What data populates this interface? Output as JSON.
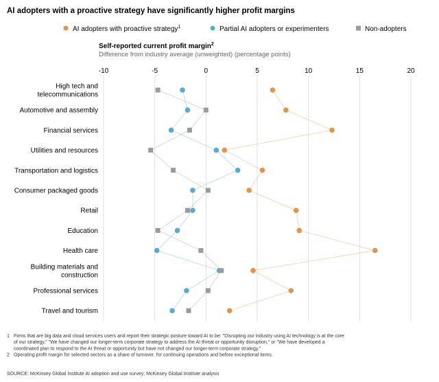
{
  "colors": {
    "proactive": "#E2944B",
    "partial": "#5AA9CE",
    "non": "#9A9A9A",
    "grid": "#e0e0e0"
  },
  "header": {
    "title": "AI adopters with a proactive strategy have significantly higher profit margins"
  },
  "legend": {
    "proactive": "AI adopters with proactive strategy",
    "proactive_sup": "1",
    "partial": "Partial AI adopters or experimenters",
    "non": "Non-adopters"
  },
  "axis": {
    "title": "Self-reported current profit margin",
    "title_sup": "2",
    "subtitle": "Difference from industry average (unweighted) (percentage points)"
  },
  "chart_data": {
    "type": "scatter",
    "orientation": "horizontal-dot-plot",
    "xlim": [
      -10,
      20
    ],
    "xticks": [
      -10,
      -5,
      0,
      5,
      10,
      15,
      20
    ],
    "categories": [
      [
        "High tech and",
        "telecommunications"
      ],
      [
        "Automotive and assembly"
      ],
      [
        "Financial services"
      ],
      [
        "Utilities and resources"
      ],
      [
        "Transportation and logistics"
      ],
      [
        "Consumer packaged goods"
      ],
      [
        "Retail"
      ],
      [
        "Education"
      ],
      [
        "Health care"
      ],
      [
        "Building materials and",
        "construction"
      ],
      [
        "Professional services"
      ],
      [
        "Travel and tourism"
      ]
    ],
    "series": [
      {
        "name": "AI adopters with proactive strategy",
        "key": "proactive",
        "marker": "circle",
        "values": [
          6.5,
          7.8,
          12.3,
          1.8,
          5.5,
          4.2,
          8.8,
          9.1,
          16.5,
          4.6,
          8.3,
          2.3
        ]
      },
      {
        "name": "Partial AI adopters or experimenters",
        "key": "partial",
        "marker": "circle",
        "values": [
          -2.3,
          -1.8,
          -3.4,
          1.0,
          3.1,
          -1.3,
          -1.3,
          -2.8,
          -4.8,
          1.3,
          -1.9,
          -3.3
        ]
      },
      {
        "name": "Non-adopters",
        "key": "non",
        "marker": "square",
        "values": [
          -4.7,
          0.0,
          -1.6,
          -5.4,
          -3.2,
          0.2,
          -1.8,
          -4.7,
          -0.5,
          1.5,
          0.2,
          -1.7
        ]
      }
    ]
  },
  "footnotes": [
    {
      "num": "1",
      "lines": [
        "Firms that are big data and cloud services users and report their strategic posture toward AI to be: \"Disrupting our industry using AI technology is at the core",
        "of our strategy,\" \"We have changed our longer-term corporate strategy to address the AI threat or opportunity disruption,\" or \"We have developed a",
        "coordinated plan to respond to the AI threat or opportunity but have not changed our longer-term corporate strategy.\""
      ]
    },
    {
      "num": "2",
      "lines": [
        "Operating profit margin for selected sectors as a share of turnover, for continuing operations and before exceptional items."
      ]
    }
  ],
  "source": "SOURCE:  McKinsey Global Institute AI adoption and use survey; McKinsey Global Institute analysis"
}
